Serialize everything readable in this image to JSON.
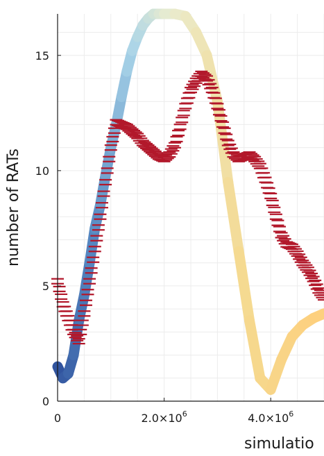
{
  "chart_data": {
    "type": "line",
    "title": "",
    "xlabel": "simulatio",
    "ylabel": "number of RATs",
    "xlim": [
      0,
      5000000
    ],
    "ylim": [
      0,
      16.8
    ],
    "grid": true,
    "x_ticks": [
      {
        "value": 0,
        "label": "0"
      },
      {
        "value": 2000000,
        "label": "2.0×10",
        "exp": "6"
      },
      {
        "value": 4000000,
        "label": "4.0×10",
        "exp": "6"
      }
    ],
    "y_ticks": [
      {
        "value": 0,
        "label": "0"
      },
      {
        "value": 5,
        "label": "5"
      },
      {
        "value": 10,
        "label": "10"
      },
      {
        "value": 15,
        "label": "15"
      }
    ],
    "series": [
      {
        "style": "thick-gradient-line",
        "colors": [
          "#31549f",
          "#5a8dc4",
          "#a9d4e8",
          "#e9ecd0",
          "#f5d98f",
          "#fdd07e"
        ],
        "x": [
          0,
          100000,
          200000,
          300000,
          400000,
          500000,
          600000,
          700000,
          800000,
          900000,
          1000000,
          1100000,
          1200000,
          1300000,
          1400000,
          1500000,
          1600000,
          1700000,
          1800000,
          1900000,
          2000000,
          2200000,
          2400000,
          2600000,
          2800000,
          3000000,
          3200000,
          3400000,
          3600000,
          3800000,
          4000000,
          4200000,
          4400000,
          4600000,
          4800000,
          5000000
        ],
        "y": [
          1.5,
          1.0,
          1.2,
          2.0,
          3.5,
          4.6,
          6.0,
          7.5,
          8.5,
          9.8,
          11.0,
          12.0,
          13.2,
          14.3,
          15.2,
          15.8,
          16.3,
          16.6,
          16.8,
          16.8,
          16.8,
          16.8,
          16.7,
          16.0,
          15.0,
          13.0,
          9.5,
          6.5,
          3.5,
          1.0,
          0.5,
          1.8,
          2.8,
          3.3,
          3.6,
          3.8
        ]
      },
      {
        "style": "dashes",
        "color": "#b2182b",
        "x": [
          0,
          100000,
          200000,
          300000,
          400000,
          500000,
          600000,
          700000,
          800000,
          900000,
          1000000,
          1100000,
          1200000,
          1300000,
          1400000,
          1500000,
          1600000,
          1700000,
          1800000,
          1900000,
          2000000,
          2100000,
          2200000,
          2300000,
          2400000,
          2500000,
          2600000,
          2700000,
          2800000,
          2900000,
          3000000,
          3100000,
          3200000,
          3300000,
          3400000,
          3500000,
          3600000,
          3700000,
          3800000,
          3900000,
          4000000,
          4100000,
          4200000,
          4300000,
          4400000,
          4500000,
          4600000,
          4700000,
          4800000,
          4900000,
          5000000
        ],
        "y": [
          5.2,
          4.2,
          3.6,
          3.0,
          2.6,
          3.8,
          5.2,
          6.6,
          8.0,
          9.5,
          11.0,
          12.1,
          12.0,
          11.9,
          11.7,
          11.5,
          11.2,
          11.0,
          10.8,
          10.6,
          10.5,
          10.7,
          11.1,
          11.9,
          12.8,
          13.5,
          13.9,
          14.2,
          14.0,
          13.5,
          12.8,
          12.0,
          11.2,
          10.7,
          10.5,
          10.6,
          10.7,
          10.5,
          10.2,
          9.6,
          8.9,
          8.0,
          7.2,
          6.8,
          6.7,
          6.4,
          6.0,
          5.7,
          5.3,
          4.8,
          4.5
        ]
      }
    ]
  }
}
